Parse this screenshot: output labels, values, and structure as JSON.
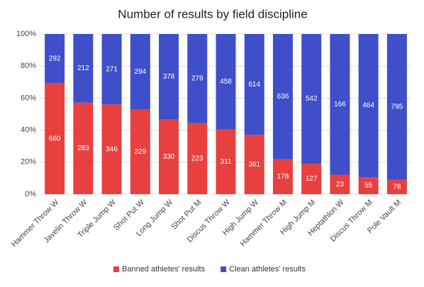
{
  "chart_data": {
    "type": "bar",
    "stacking": "percent",
    "title": "Number of results by field discipline",
    "categories": [
      "Hammer Throw W",
      "Javelin Throw W",
      "Triple Jump W",
      "Shot Put W",
      "Long Jump W",
      "Shot Put M",
      "Discus Throw W",
      "High Jump W",
      "Hammer Throw M",
      "High Jump M",
      "Heptathlon W",
      "Discus Throw M",
      "Pole Vault M"
    ],
    "series": [
      {
        "name": "Banned athletes' results",
        "color": "#e8403f",
        "values": [
          660,
          283,
          346,
          329,
          330,
          223,
          311,
          361,
          178,
          127,
          23,
          55,
          78
        ]
      },
      {
        "name": "Clean athletes' results",
        "color": "#3f4fc9",
        "values": [
          292,
          212,
          271,
          294,
          378,
          279,
          458,
          614,
          636,
          542,
          166,
          464,
          795
        ]
      }
    ],
    "ylim": [
      0,
      100
    ],
    "yticks": [
      {
        "value": 0,
        "label": "0%"
      },
      {
        "value": 20,
        "label": "20%"
      },
      {
        "value": 40,
        "label": "40%"
      },
      {
        "value": 60,
        "label": "60%"
      },
      {
        "value": 80,
        "label": "80%"
      },
      {
        "value": 100,
        "label": "100%"
      }
    ],
    "grid": true,
    "legend": "bottom"
  }
}
